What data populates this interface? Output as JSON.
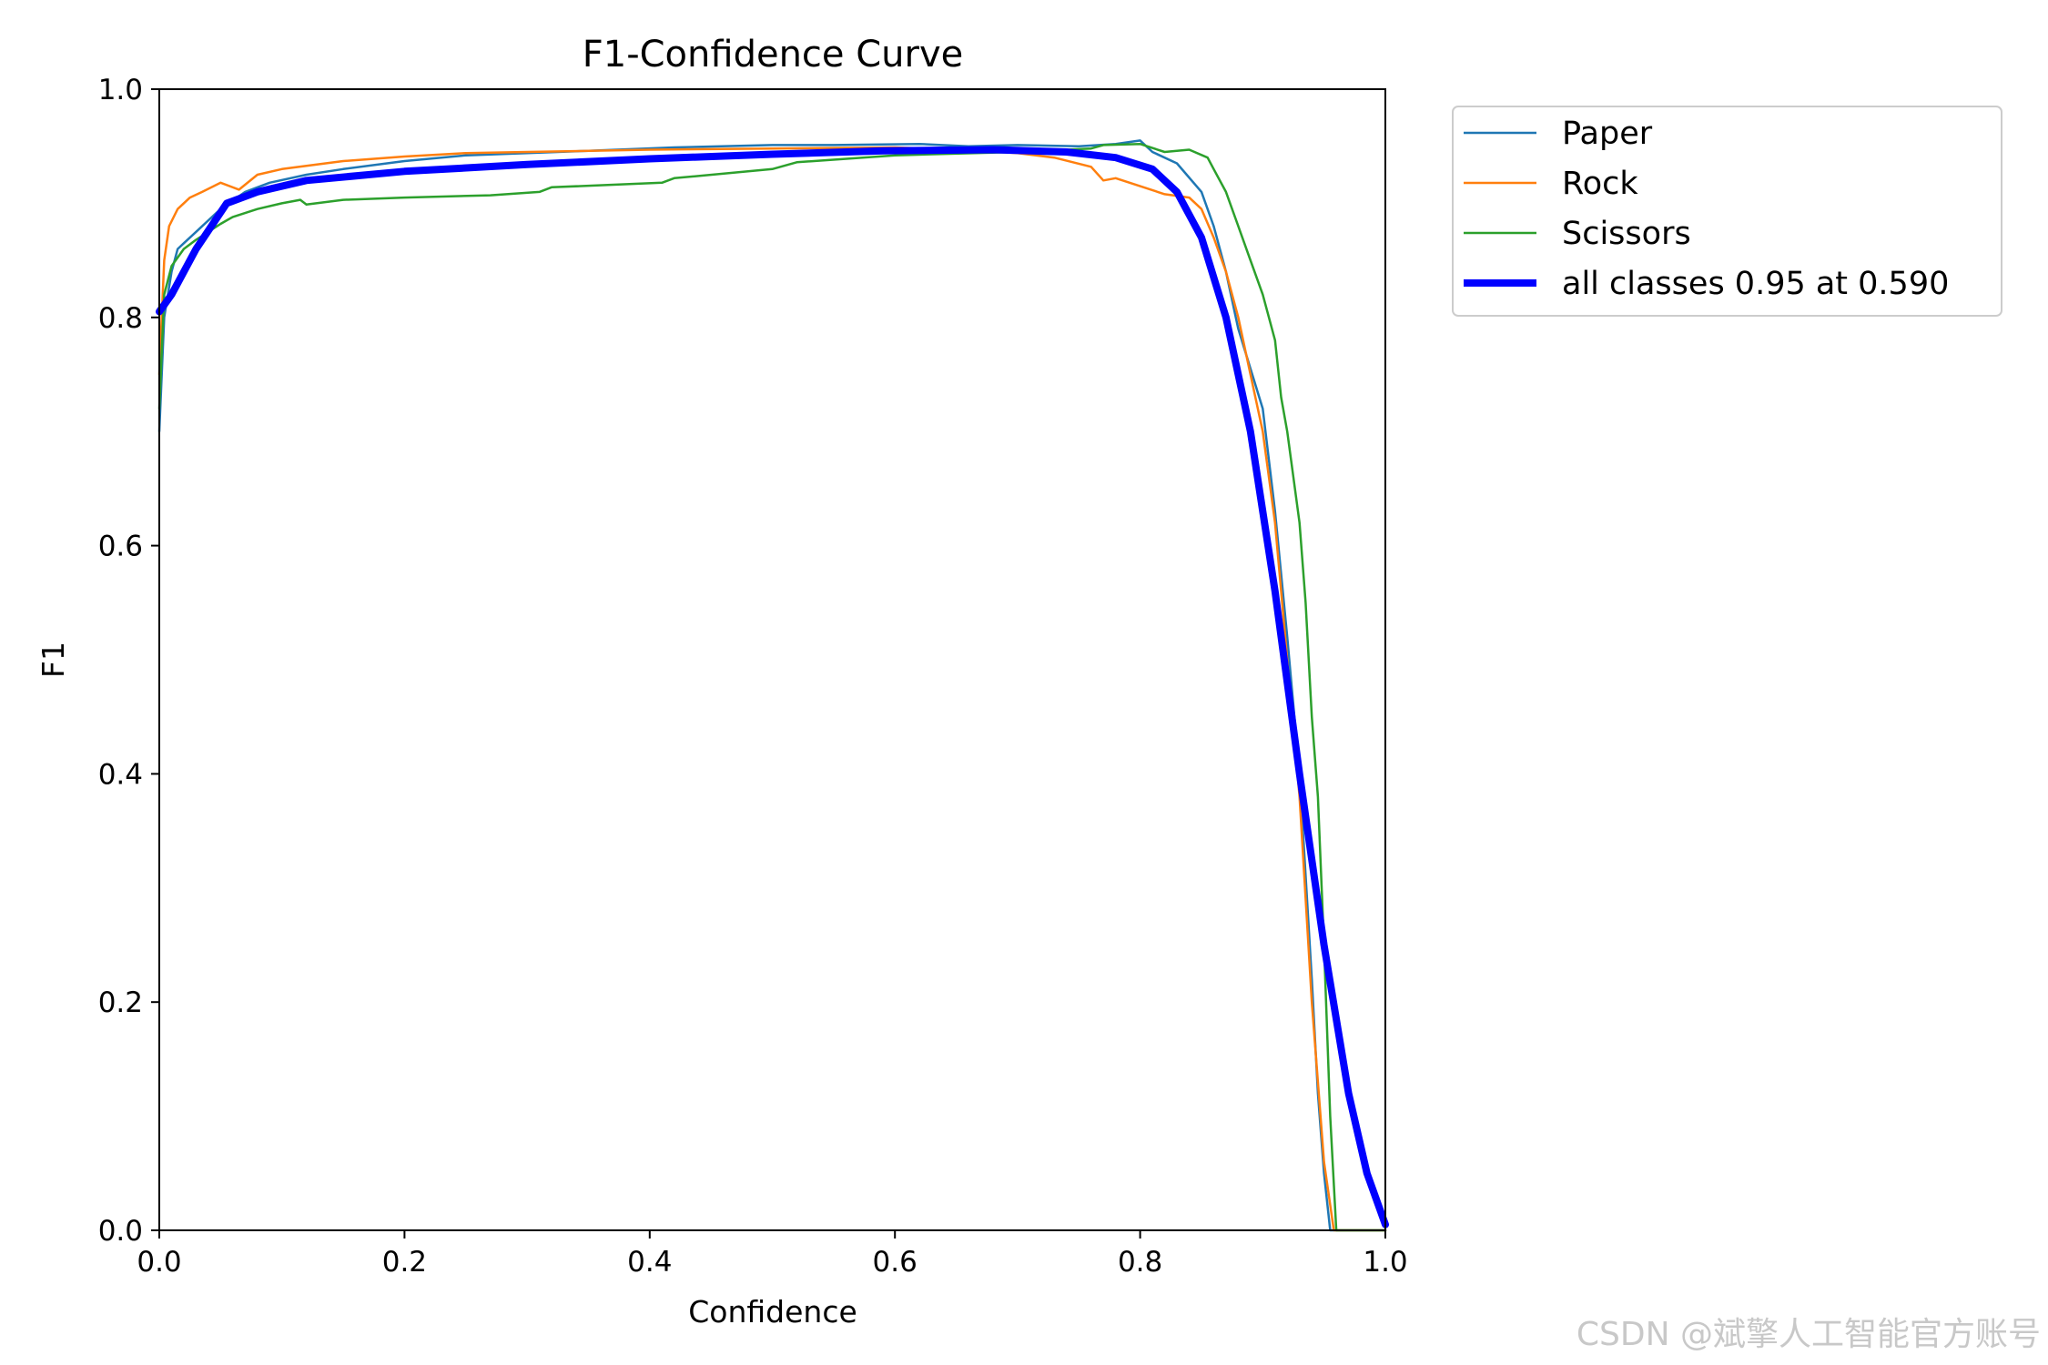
{
  "chart_data": {
    "type": "line",
    "title": "F1-Confidence Curve",
    "xlabel": "Confidence",
    "ylabel": "F1",
    "xlim": [
      0,
      1
    ],
    "ylim": [
      0,
      1
    ],
    "xticks": [
      "0.0",
      "0.2",
      "0.4",
      "0.6",
      "0.8",
      "1.0"
    ],
    "yticks": [
      "0.0",
      "0.2",
      "0.4",
      "0.6",
      "0.8",
      "1.0"
    ],
    "legend_placement": "outside-upper-right",
    "series": [
      {
        "name": "Paper",
        "color": "#1f77b4",
        "width": "thin",
        "points": [
          [
            0.0,
            0.7
          ],
          [
            0.004,
            0.8
          ],
          [
            0.01,
            0.84
          ],
          [
            0.015,
            0.86
          ],
          [
            0.02,
            0.865
          ],
          [
            0.03,
            0.875
          ],
          [
            0.04,
            0.885
          ],
          [
            0.05,
            0.895
          ],
          [
            0.07,
            0.91
          ],
          [
            0.09,
            0.918
          ],
          [
            0.12,
            0.925
          ],
          [
            0.15,
            0.93
          ],
          [
            0.2,
            0.937
          ],
          [
            0.25,
            0.942
          ],
          [
            0.3,
            0.944
          ],
          [
            0.35,
            0.946
          ],
          [
            0.42,
            0.949
          ],
          [
            0.5,
            0.951
          ],
          [
            0.55,
            0.951
          ],
          [
            0.62,
            0.952
          ],
          [
            0.66,
            0.95
          ],
          [
            0.7,
            0.951
          ],
          [
            0.75,
            0.95
          ],
          [
            0.78,
            0.952
          ],
          [
            0.8,
            0.955
          ],
          [
            0.81,
            0.945
          ],
          [
            0.83,
            0.935
          ],
          [
            0.85,
            0.91
          ],
          [
            0.86,
            0.88
          ],
          [
            0.87,
            0.84
          ],
          [
            0.88,
            0.79
          ],
          [
            0.9,
            0.72
          ],
          [
            0.91,
            0.63
          ],
          [
            0.92,
            0.52
          ],
          [
            0.93,
            0.4
          ],
          [
            0.94,
            0.22
          ],
          [
            0.945,
            0.12
          ],
          [
            0.95,
            0.05
          ],
          [
            0.955,
            0.0
          ],
          [
            1.0,
            0.0
          ]
        ]
      },
      {
        "name": "Rock",
        "color": "#ff7f0e",
        "width": "thin",
        "points": [
          [
            0.0,
            0.75
          ],
          [
            0.004,
            0.85
          ],
          [
            0.008,
            0.88
          ],
          [
            0.015,
            0.895
          ],
          [
            0.025,
            0.905
          ],
          [
            0.035,
            0.91
          ],
          [
            0.05,
            0.918
          ],
          [
            0.065,
            0.912
          ],
          [
            0.08,
            0.925
          ],
          [
            0.1,
            0.93
          ],
          [
            0.15,
            0.937
          ],
          [
            0.2,
            0.941
          ],
          [
            0.25,
            0.944
          ],
          [
            0.3,
            0.945
          ],
          [
            0.4,
            0.947
          ],
          [
            0.5,
            0.948
          ],
          [
            0.6,
            0.949
          ],
          [
            0.65,
            0.947
          ],
          [
            0.7,
            0.944
          ],
          [
            0.73,
            0.94
          ],
          [
            0.76,
            0.932
          ],
          [
            0.77,
            0.92
          ],
          [
            0.78,
            0.922
          ],
          [
            0.8,
            0.915
          ],
          [
            0.82,
            0.908
          ],
          [
            0.84,
            0.905
          ],
          [
            0.85,
            0.895
          ],
          [
            0.86,
            0.87
          ],
          [
            0.87,
            0.84
          ],
          [
            0.88,
            0.8
          ],
          [
            0.89,
            0.75
          ],
          [
            0.9,
            0.7
          ],
          [
            0.91,
            0.62
          ],
          [
            0.92,
            0.5
          ],
          [
            0.93,
            0.38
          ],
          [
            0.94,
            0.2
          ],
          [
            0.95,
            0.06
          ],
          [
            0.958,
            0.0
          ],
          [
            1.0,
            0.0
          ]
        ]
      },
      {
        "name": "Scissors",
        "color": "#2ca02c",
        "width": "thin",
        "points": [
          [
            0.0,
            0.72
          ],
          [
            0.004,
            0.82
          ],
          [
            0.01,
            0.845
          ],
          [
            0.02,
            0.86
          ],
          [
            0.03,
            0.868
          ],
          [
            0.04,
            0.875
          ],
          [
            0.05,
            0.882
          ],
          [
            0.06,
            0.888
          ],
          [
            0.08,
            0.895
          ],
          [
            0.1,
            0.9
          ],
          [
            0.115,
            0.903
          ],
          [
            0.12,
            0.899
          ],
          [
            0.15,
            0.903
          ],
          [
            0.2,
            0.905
          ],
          [
            0.27,
            0.907
          ],
          [
            0.31,
            0.91
          ],
          [
            0.32,
            0.914
          ],
          [
            0.41,
            0.918
          ],
          [
            0.42,
            0.922
          ],
          [
            0.5,
            0.93
          ],
          [
            0.52,
            0.936
          ],
          [
            0.6,
            0.942
          ],
          [
            0.7,
            0.945
          ],
          [
            0.76,
            0.948
          ],
          [
            0.77,
            0.951
          ],
          [
            0.8,
            0.952
          ],
          [
            0.82,
            0.945
          ],
          [
            0.84,
            0.947
          ],
          [
            0.855,
            0.94
          ],
          [
            0.86,
            0.93
          ],
          [
            0.87,
            0.91
          ],
          [
            0.88,
            0.88
          ],
          [
            0.89,
            0.85
          ],
          [
            0.9,
            0.82
          ],
          [
            0.91,
            0.78
          ],
          [
            0.915,
            0.73
          ],
          [
            0.92,
            0.7
          ],
          [
            0.93,
            0.62
          ],
          [
            0.935,
            0.55
          ],
          [
            0.94,
            0.45
          ],
          [
            0.945,
            0.38
          ],
          [
            0.95,
            0.25
          ],
          [
            0.955,
            0.1
          ],
          [
            0.96,
            0.0
          ],
          [
            1.0,
            0.0
          ]
        ]
      },
      {
        "name": "all classes 0.95 at 0.590",
        "color": "#0000ff",
        "width": "thick",
        "points": [
          [
            0.0,
            0.805
          ],
          [
            0.01,
            0.82
          ],
          [
            0.03,
            0.86
          ],
          [
            0.055,
            0.9
          ],
          [
            0.08,
            0.91
          ],
          [
            0.12,
            0.92
          ],
          [
            0.2,
            0.928
          ],
          [
            0.3,
            0.934
          ],
          [
            0.4,
            0.939
          ],
          [
            0.5,
            0.943
          ],
          [
            0.59,
            0.946
          ],
          [
            0.68,
            0.947
          ],
          [
            0.74,
            0.945
          ],
          [
            0.78,
            0.94
          ],
          [
            0.81,
            0.93
          ],
          [
            0.83,
            0.91
          ],
          [
            0.85,
            0.87
          ],
          [
            0.87,
            0.8
          ],
          [
            0.89,
            0.7
          ],
          [
            0.91,
            0.56
          ],
          [
            0.93,
            0.4
          ],
          [
            0.95,
            0.25
          ],
          [
            0.97,
            0.12
          ],
          [
            0.985,
            0.05
          ],
          [
            1.0,
            0.005
          ]
        ]
      }
    ]
  },
  "watermark": "CSDN @斌擎人工智能官方账号"
}
